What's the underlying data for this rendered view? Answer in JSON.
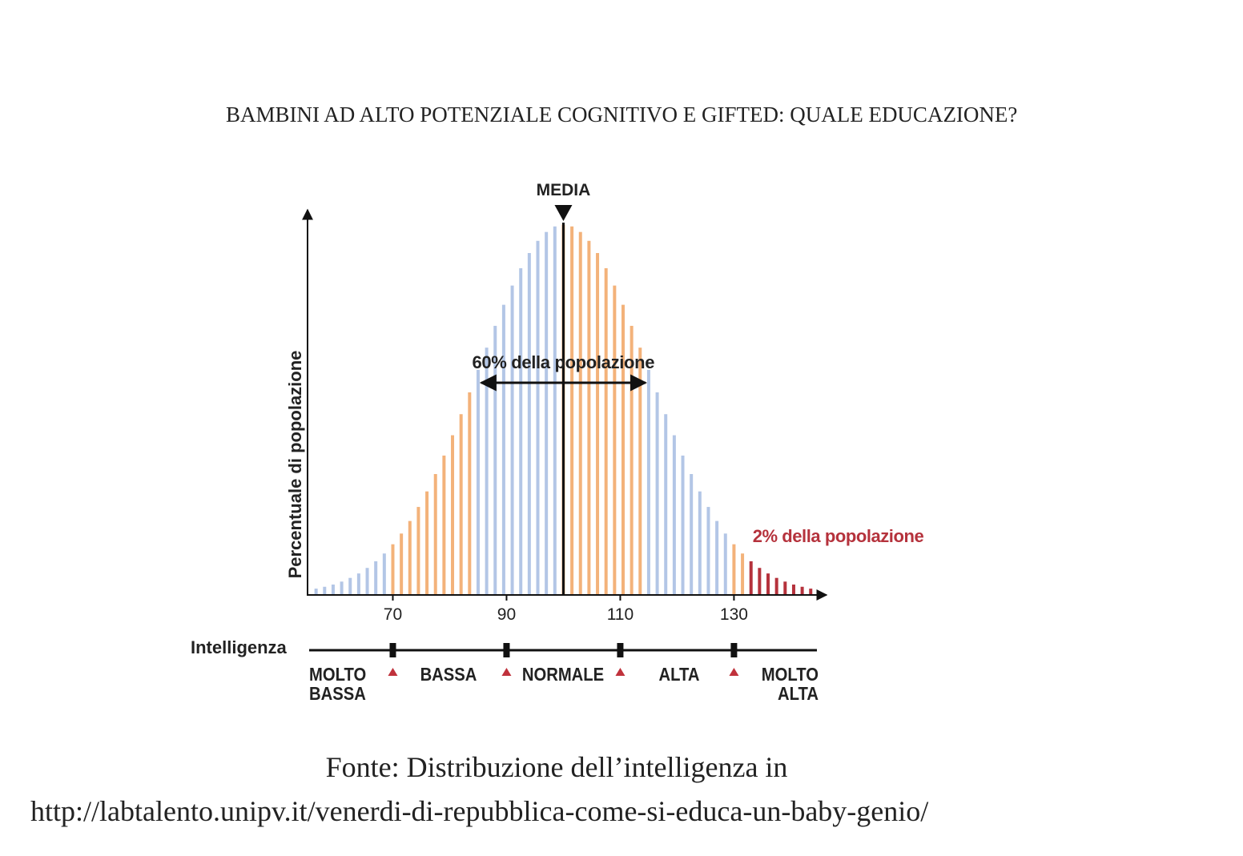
{
  "chart_data": {
    "type": "bar",
    "title": "BAMBINI AD ALTO POTENZIALE COGNITIVO E GIFTED: QUALE EDUCAZIONE?",
    "y_label": "Percentuale di popolazione",
    "x": [
      56.5,
      58,
      59.5,
      61,
      62.5,
      64,
      65.5,
      67,
      68.5,
      70,
      71.5,
      73,
      74.5,
      76,
      77.5,
      79,
      80.5,
      82,
      83.5,
      85,
      86.5,
      88,
      89.5,
      91,
      92.5,
      94,
      95.5,
      97,
      98.5,
      100,
      101.5,
      103,
      104.5,
      106,
      107.5,
      109,
      110.5,
      112,
      113.5,
      115,
      116.5,
      118,
      119.5,
      121,
      122.5,
      124,
      125.5,
      127,
      128.5,
      130,
      131.5,
      133,
      134.5,
      136,
      137.5,
      139,
      140.5,
      142,
      143.5
    ],
    "values": [
      1.5,
      2.0,
      2.6,
      3.4,
      4.4,
      5.6,
      7.1,
      8.9,
      11.0,
      13.5,
      16.4,
      19.8,
      23.6,
      27.8,
      32.5,
      37.5,
      43.0,
      48.7,
      54.6,
      60.7,
      66.7,
      72.6,
      78.3,
      83.5,
      88.2,
      92.3,
      95.6,
      98.0,
      99.5,
      100,
      99.5,
      98.0,
      95.6,
      92.3,
      88.2,
      83.5,
      78.3,
      72.6,
      66.7,
      60.7,
      54.6,
      48.7,
      43.0,
      37.5,
      32.5,
      27.8,
      23.6,
      19.8,
      16.4,
      13.5,
      11.0,
      8.9,
      7.1,
      5.6,
      4.4,
      3.4,
      2.6,
      2.0,
      1.5
    ],
    "colors": [
      "#b3c6e6",
      "#b3c6e6",
      "#b3c6e6",
      "#b3c6e6",
      "#b3c6e6",
      "#b3c6e6",
      "#b3c6e6",
      "#b3c6e6",
      "#b3c6e6",
      "#f3b27a",
      "#f3b27a",
      "#f3b27a",
      "#f3b27a",
      "#f3b27a",
      "#f3b27a",
      "#f3b27a",
      "#f3b27a",
      "#f3b27a",
      "#f3b27a",
      "#b3c6e6",
      "#b3c6e6",
      "#b3c6e6",
      "#b3c6e6",
      "#b3c6e6",
      "#b3c6e6",
      "#b3c6e6",
      "#b3c6e6",
      "#b3c6e6",
      "#b3c6e6",
      "#f3b27a",
      "#f3b27a",
      "#f3b27a",
      "#f3b27a",
      "#f3b27a",
      "#f3b27a",
      "#f3b27a",
      "#f3b27a",
      "#f3b27a",
      "#f3b27a",
      "#b3c6e6",
      "#b3c6e6",
      "#b3c6e6",
      "#b3c6e6",
      "#b3c6e6",
      "#b3c6e6",
      "#b3c6e6",
      "#b3c6e6",
      "#b3c6e6",
      "#b3c6e6",
      "#f3b27a",
      "#f3b27a",
      "#b5323c",
      "#b5323c",
      "#b5323c",
      "#b5323c",
      "#b5323c",
      "#b5323c",
      "#b5323c",
      "#b5323c"
    ],
    "xlim": [
      55,
      146
    ],
    "ylim": [
      0,
      104
    ],
    "xticks": [
      70,
      90,
      110,
      130
    ],
    "mean": {
      "label": "MEDIA",
      "x": 100
    },
    "annotations": [
      {
        "text": "60% della popolazione",
        "x_range": [
          85,
          115
        ],
        "color": "#222"
      },
      {
        "text": "2% della popolazione",
        "x": 133,
        "color": "#b5323c"
      }
    ],
    "scale_label": "Intelligenza",
    "scale_bands": [
      "MOLTO BASSA",
      "BASSA",
      "NORMALE",
      "ALTA",
      "MOLTO ALTA"
    ]
  },
  "source": {
    "line1": "Fonte: Distribuzione dell’intelligenza in",
    "line2": "http://labtalento.unipv.it/venerdi-di-repubblica-come-si-educa-un-baby-genio/"
  }
}
